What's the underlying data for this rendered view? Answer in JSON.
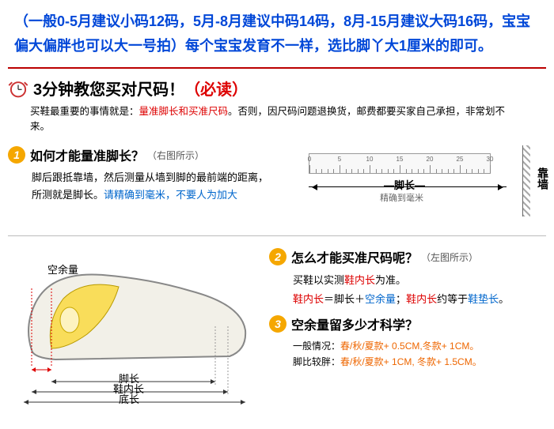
{
  "topNote": "（一般0-5月建议小码12码，5月-8月建议中码14码，8月-15月建议大码16码，宝宝偏大偏胖也可以大一号拍）每个宝宝发育不一样，选比脚丫大1厘米的即可。",
  "title": {
    "main": "3分钟教您买对尺码！",
    "red": "（必读）"
  },
  "sub": {
    "a": "买鞋最重要的事情就是：",
    "b": "量准脚长和买准尺码",
    "c": "。否则，因尺码问题退换货，邮费都要买家自己承担，非常划不来。"
  },
  "q1": {
    "num": "1",
    "title": "如何才能量准脚长？",
    "hint": "（右图所示）",
    "l1": "脚后跟抵靠墙，然后测量从墙到脚的最前端的距离，",
    "l2a": "所测就是脚长。",
    "l2b": "请精确到毫米，不要人为加大"
  },
  "ruler": {
    "footLen": "脚长",
    "footSub": "精确到毫米",
    "wall": "靠墙",
    "nums": [
      "0",
      "5",
      "10",
      "15",
      "20",
      "25",
      "30"
    ]
  },
  "q2": {
    "num": "2",
    "title": "怎么才能买准尺码呢？",
    "hint": "（左图所示）",
    "l1a": "买鞋以实测",
    "l1b": "鞋内长",
    "l1c": "为准。",
    "l2a": "鞋内长",
    "l2b": "＝脚长＋",
    "l2c": "空余量",
    "l2d": "；",
    "l2e": "鞋内长",
    "l2f": "约等于",
    "l2g": "鞋垫长",
    "l2h": "。"
  },
  "q3": {
    "num": "3",
    "title": "空余量留多少才科学？",
    "l1a": "一般情况：",
    "l1b": "春/秋/夏款+ 0.5CM,冬款+ 1CM。",
    "l2a": "脚比较胖：",
    "l2b": "春/秋/夏款+ 1CM, 冬款+ 1.5CM。"
  },
  "shoe": {
    "spare": "空余量",
    "foot": "脚长",
    "inner": "鞋内长",
    "sole": "底长"
  }
}
